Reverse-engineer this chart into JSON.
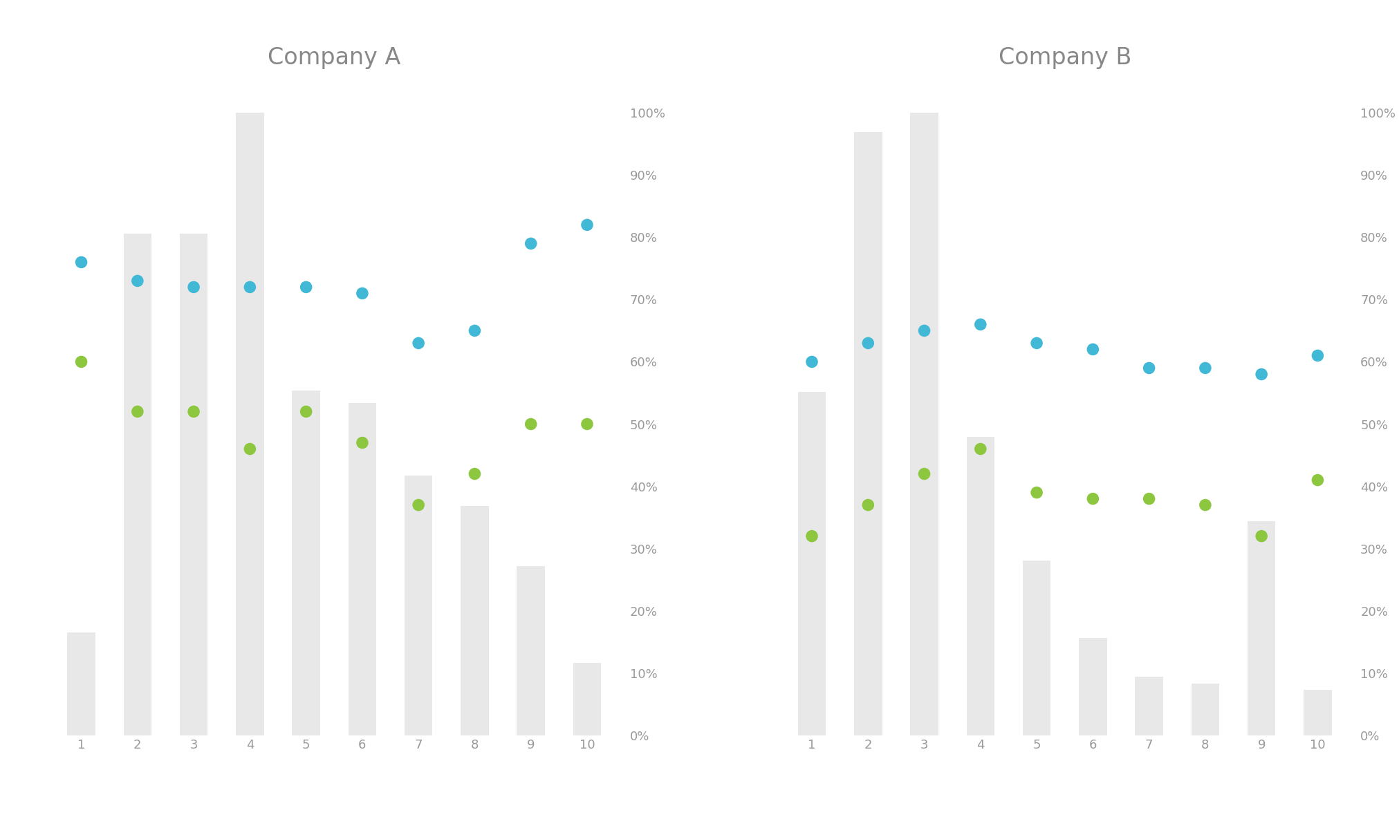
{
  "company_a": {
    "title": "Company A",
    "x": [
      1,
      2,
      3,
      4,
      5,
      6,
      7,
      8,
      9,
      10
    ],
    "bar_heights": [
      0.17,
      0.83,
      0.83,
      1.03,
      0.57,
      0.55,
      0.43,
      0.38,
      0.28,
      0.12
    ],
    "blue_dots": [
      0.76,
      0.73,
      0.72,
      0.72,
      0.72,
      0.71,
      0.63,
      0.65,
      0.79,
      0.82
    ],
    "green_dots": [
      0.6,
      0.52,
      0.52,
      0.46,
      0.52,
      0.47,
      0.37,
      0.42,
      0.5,
      0.5
    ]
  },
  "company_b": {
    "title": "Company B",
    "x": [
      1,
      2,
      3,
      4,
      5,
      6,
      7,
      8,
      9,
      10
    ],
    "bar_heights": [
      0.53,
      0.93,
      0.96,
      0.46,
      0.27,
      0.15,
      0.09,
      0.08,
      0.33,
      0.07
    ],
    "blue_dots": [
      0.6,
      0.63,
      0.65,
      0.66,
      0.63,
      0.62,
      0.59,
      0.59,
      0.58,
      0.61
    ],
    "green_dots": [
      0.32,
      0.37,
      0.42,
      0.46,
      0.39,
      0.38,
      0.38,
      0.37,
      0.32,
      0.41
    ]
  },
  "bar_color": "#e8e8e8",
  "blue_color": "#41b8d5",
  "green_color": "#8dc63f",
  "title_color": "#888888",
  "tick_color": "#999999",
  "background_color": "#ffffff",
  "dot_size": 160,
  "title_fontsize": 24,
  "tick_fontsize": 13,
  "ylim": [
    0,
    1.05
  ],
  "yticks": [
    0.0,
    0.1,
    0.2,
    0.3,
    0.4,
    0.5,
    0.6,
    0.7,
    0.8,
    0.9,
    1.0
  ],
  "ytick_labels": [
    "0%",
    "10%",
    "20%",
    "30%",
    "40%",
    "50%",
    "60%",
    "70%",
    "80%",
    "90%",
    "100%"
  ]
}
